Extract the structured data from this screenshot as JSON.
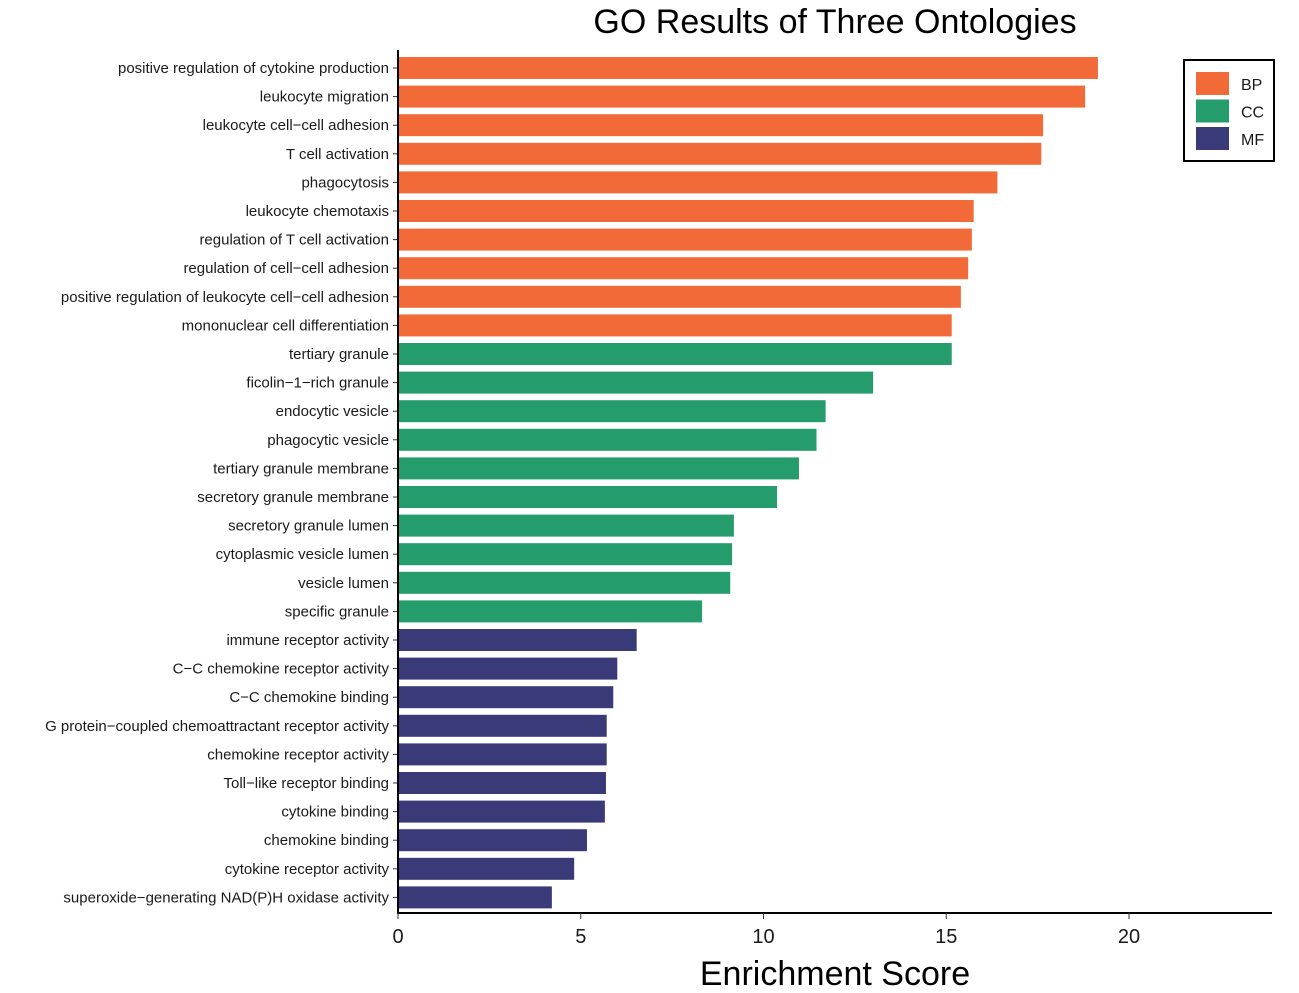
{
  "chart_data": {
    "type": "bar",
    "orientation": "horizontal",
    "title": "GO Results of Three Ontologies",
    "xlabel": "Enrichment Score",
    "ylabel": "",
    "xlim": [
      0,
      23.9
    ],
    "xticks": [
      0,
      5,
      10,
      15,
      20
    ],
    "grid": false,
    "legend": {
      "position": "top-right",
      "entries": [
        {
          "name": "BP",
          "color": "#F26A38"
        },
        {
          "name": "CC",
          "color": "#259C6C"
        },
        {
          "name": "MF",
          "color": "#3A3A78"
        }
      ]
    },
    "categories": [
      "positive regulation of cytokine production",
      "leukocyte migration",
      "leukocyte cell−cell adhesion",
      "T cell activation",
      "phagocytosis",
      "leukocyte chemotaxis",
      "regulation of T cell activation",
      "regulation of cell−cell adhesion",
      "positive regulation of leukocyte cell−cell adhesion",
      "mononuclear cell differentiation",
      "tertiary granule",
      "ficolin−1−rich granule",
      "endocytic vesicle",
      "phagocytic vesicle",
      "tertiary granule membrane",
      "secretory granule membrane",
      "secretory granule lumen",
      "cytoplasmic vesicle lumen",
      "vesicle lumen",
      "specific granule",
      "immune receptor activity",
      "C−C chemokine receptor activity",
      "C−C chemokine binding",
      "G protein−coupled chemoattractant receptor activity",
      "chemokine receptor activity",
      "Toll−like receptor binding",
      "cytokine binding",
      "chemokine binding",
      "cytokine receptor activity",
      "superoxide−generating NAD(P)H oxidase activity"
    ],
    "values": [
      19.15,
      18.8,
      17.65,
      17.6,
      16.4,
      15.75,
      15.7,
      15.6,
      15.4,
      15.15,
      15.15,
      13.0,
      11.7,
      11.45,
      10.97,
      10.37,
      9.19,
      9.14,
      9.09,
      8.32,
      6.53,
      6.0,
      5.89,
      5.71,
      5.71,
      5.69,
      5.66,
      5.17,
      4.82,
      4.21
    ],
    "groups": [
      "BP",
      "BP",
      "BP",
      "BP",
      "BP",
      "BP",
      "BP",
      "BP",
      "BP",
      "BP",
      "CC",
      "CC",
      "CC",
      "CC",
      "CC",
      "CC",
      "CC",
      "CC",
      "CC",
      "CC",
      "MF",
      "MF",
      "MF",
      "MF",
      "MF",
      "MF",
      "MF",
      "MF",
      "MF",
      "MF"
    ]
  }
}
